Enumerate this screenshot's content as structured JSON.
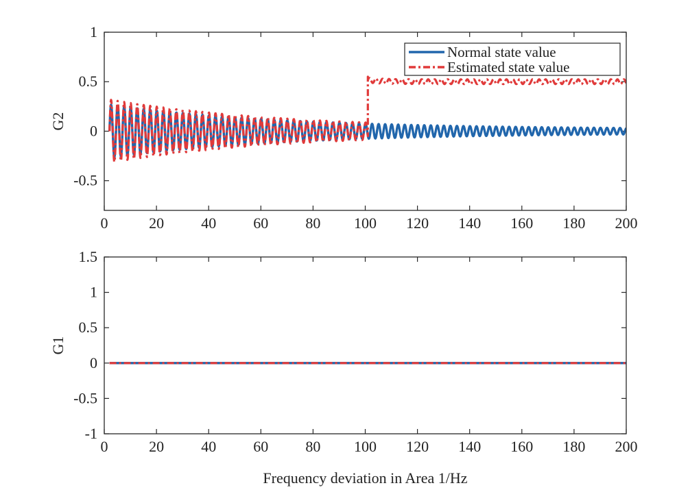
{
  "colors": {
    "normal": "#2166ac",
    "estimated": "#e03a3a",
    "axis": "#262626",
    "background": "#ffffff"
  },
  "chart_data": [
    {
      "type": "line",
      "id": "top",
      "xlabel": "",
      "ylabel": "G2",
      "xlim": [
        0,
        200
      ],
      "ylim": [
        -0.8,
        1.0
      ],
      "xticks": [
        0,
        20,
        40,
        60,
        80,
        100,
        120,
        140,
        160,
        180,
        200
      ],
      "yticks": [
        -0.5,
        0,
        0.5,
        1
      ],
      "xtick_labels": [
        "0",
        "20",
        "40",
        "60",
        "80",
        "100",
        "120",
        "140",
        "160",
        "180",
        "200"
      ],
      "ytick_labels": [
        "-0.5",
        "0",
        "0.5",
        "1"
      ],
      "legend": {
        "position": "top-right",
        "entries": [
          "Normal state value",
          "Estimated state value"
        ]
      },
      "series": [
        {
          "name": "Normal state value",
          "style": "solid",
          "model": "damped oscillation around 0",
          "start_x": 2,
          "end_x": 200,
          "base": 0,
          "initial_amplitude": 0.27,
          "final_amplitude": 0.02,
          "period": 2.5
        },
        {
          "name": "Estimated state value",
          "style": "dashdot",
          "model": "tracks normal value until step, then offset by 0.5",
          "start_x": 2,
          "end_x": 200,
          "base": 0,
          "initial_amplitude": 0.32,
          "final_amplitude": 0.02,
          "period": 2.5,
          "step_x": 101,
          "offset_after_step": 0.5,
          "overshoot": 0.55
        }
      ]
    },
    {
      "type": "line",
      "id": "bottom",
      "xlabel": "Frequency deviation in Area 1/Hz",
      "ylabel": "G1",
      "xlim": [
        0,
        200
      ],
      "ylim": [
        -1.0,
        1.5
      ],
      "xticks": [
        0,
        20,
        40,
        60,
        80,
        100,
        120,
        140,
        160,
        180,
        200
      ],
      "yticks": [
        -1,
        -0.5,
        0,
        0.5,
        1,
        1.5
      ],
      "xtick_labels": [
        "0",
        "20",
        "40",
        "60",
        "80",
        "100",
        "120",
        "140",
        "160",
        "180",
        "200"
      ],
      "ytick_labels": [
        "-1",
        "-0.5",
        "0",
        "0.5",
        "1",
        "1.5"
      ],
      "series": [
        {
          "name": "Normal state value",
          "style": "solid",
          "model": "constant",
          "start_x": 2,
          "end_x": 200,
          "base": 0
        },
        {
          "name": "Estimated state value",
          "style": "dashdot",
          "model": "constant",
          "start_x": 2,
          "end_x": 200,
          "base": 0
        }
      ]
    }
  ]
}
